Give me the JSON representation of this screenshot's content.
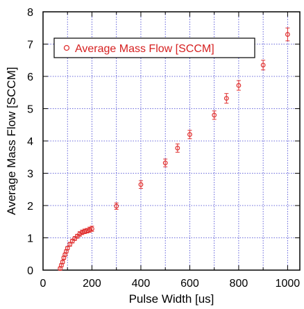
{
  "chart_data": {
    "type": "scatter",
    "title": "",
    "xlabel": "Pulse Width [us]",
    "ylabel": "Average Mass Flow [SCCM]",
    "xlim": [
      0,
      1050
    ],
    "ylim": [
      0,
      8
    ],
    "xticks": [
      0,
      200,
      400,
      600,
      800,
      1000
    ],
    "yticks": [
      0,
      1,
      2,
      3,
      4,
      5,
      6,
      7,
      8
    ],
    "grid": true,
    "legend_position": "top-left",
    "series": [
      {
        "name": "Average Mass Flow [SCCM]",
        "marker": "circle",
        "color": "#e03030",
        "points": [
          {
            "x": 70,
            "y": 0.05,
            "err": 0.05
          },
          {
            "x": 75,
            "y": 0.15,
            "err": 0.05
          },
          {
            "x": 80,
            "y": 0.25,
            "err": 0.05
          },
          {
            "x": 85,
            "y": 0.38,
            "err": 0.05
          },
          {
            "x": 90,
            "y": 0.48,
            "err": 0.05
          },
          {
            "x": 95,
            "y": 0.58,
            "err": 0.05
          },
          {
            "x": 100,
            "y": 0.68,
            "err": 0.05
          },
          {
            "x": 110,
            "y": 0.8,
            "err": 0.06
          },
          {
            "x": 120,
            "y": 0.9,
            "err": 0.06
          },
          {
            "x": 130,
            "y": 0.98,
            "err": 0.06
          },
          {
            "x": 140,
            "y": 1.05,
            "err": 0.06
          },
          {
            "x": 150,
            "y": 1.12,
            "err": 0.07
          },
          {
            "x": 160,
            "y": 1.17,
            "err": 0.07
          },
          {
            "x": 170,
            "y": 1.2,
            "err": 0.07
          },
          {
            "x": 180,
            "y": 1.22,
            "err": 0.07
          },
          {
            "x": 190,
            "y": 1.25,
            "err": 0.08
          },
          {
            "x": 200,
            "y": 1.28,
            "err": 0.08
          },
          {
            "x": 300,
            "y": 1.98,
            "err": 0.1
          },
          {
            "x": 400,
            "y": 2.65,
            "err": 0.12
          },
          {
            "x": 500,
            "y": 3.32,
            "err": 0.12
          },
          {
            "x": 550,
            "y": 3.78,
            "err": 0.13
          },
          {
            "x": 600,
            "y": 4.2,
            "err": 0.13
          },
          {
            "x": 700,
            "y": 4.8,
            "err": 0.13
          },
          {
            "x": 750,
            "y": 5.32,
            "err": 0.15
          },
          {
            "x": 800,
            "y": 5.72,
            "err": 0.15
          },
          {
            "x": 900,
            "y": 6.35,
            "err": 0.15
          },
          {
            "x": 1000,
            "y": 7.3,
            "err": 0.2
          }
        ]
      }
    ]
  }
}
